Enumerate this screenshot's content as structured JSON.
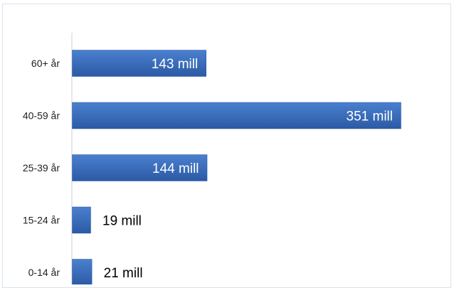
{
  "chart_data": {
    "type": "bar",
    "orientation": "horizontal",
    "categories": [
      "60+ år",
      "40-59 år",
      "25-39 år",
      "15-24 år",
      "0-14 år"
    ],
    "values": [
      143,
      351,
      144,
      19,
      21
    ],
    "value_labels": [
      "143 mill",
      "351 mill",
      "144 mill",
      "19 mill",
      "21 mill"
    ],
    "unit": "mill",
    "title": "",
    "xlabel": "",
    "ylabel": "",
    "xlim": [
      0,
      351
    ],
    "grid": false,
    "legend": "none",
    "colors": {
      "bar": "#3a6fbf",
      "bar_dark": "#2a56a0",
      "axis": "#c9d3df",
      "frame": "#d9e2ec"
    }
  }
}
